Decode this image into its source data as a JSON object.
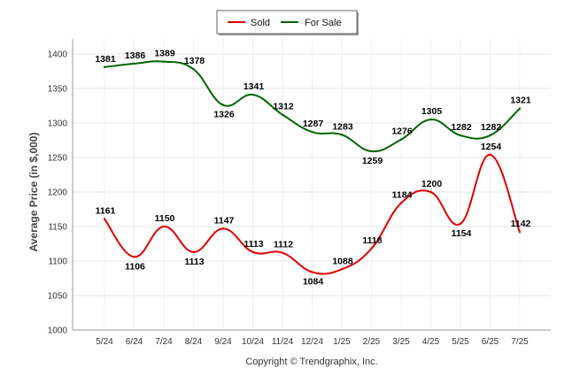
{
  "chart_data": {
    "type": "line",
    "title": "",
    "xlabel": "",
    "ylabel": "Average Price (in $,000)",
    "credit": "Copyright © Trendgraphix, Inc.",
    "categories": [
      "5/24",
      "6/24",
      "7/24",
      "8/24",
      "9/24",
      "10/24",
      "11/24",
      "12/24",
      "1/25",
      "2/25",
      "3/25",
      "4/25",
      "5/25",
      "6/25",
      "7/25"
    ],
    "ylim": [
      1000,
      1400
    ],
    "yticks": [
      1000,
      1050,
      1100,
      1150,
      1200,
      1250,
      1300,
      1350,
      1400
    ],
    "grid": true,
    "legend_position": "top-center",
    "series": [
      {
        "name": "Sold",
        "color": "#dd0000",
        "values": [
          1161,
          1106,
          1150,
          1113,
          1147,
          1113,
          1112,
          1084,
          1088,
          1118,
          1184,
          1200,
          1154,
          1254,
          1142
        ]
      },
      {
        "name": "For Sale",
        "color": "#006400",
        "values": [
          1381,
          1386,
          1389,
          1378,
          1326,
          1341,
          1312,
          1287,
          1283,
          1259,
          1276,
          1305,
          1282,
          1282,
          1321
        ]
      }
    ]
  }
}
